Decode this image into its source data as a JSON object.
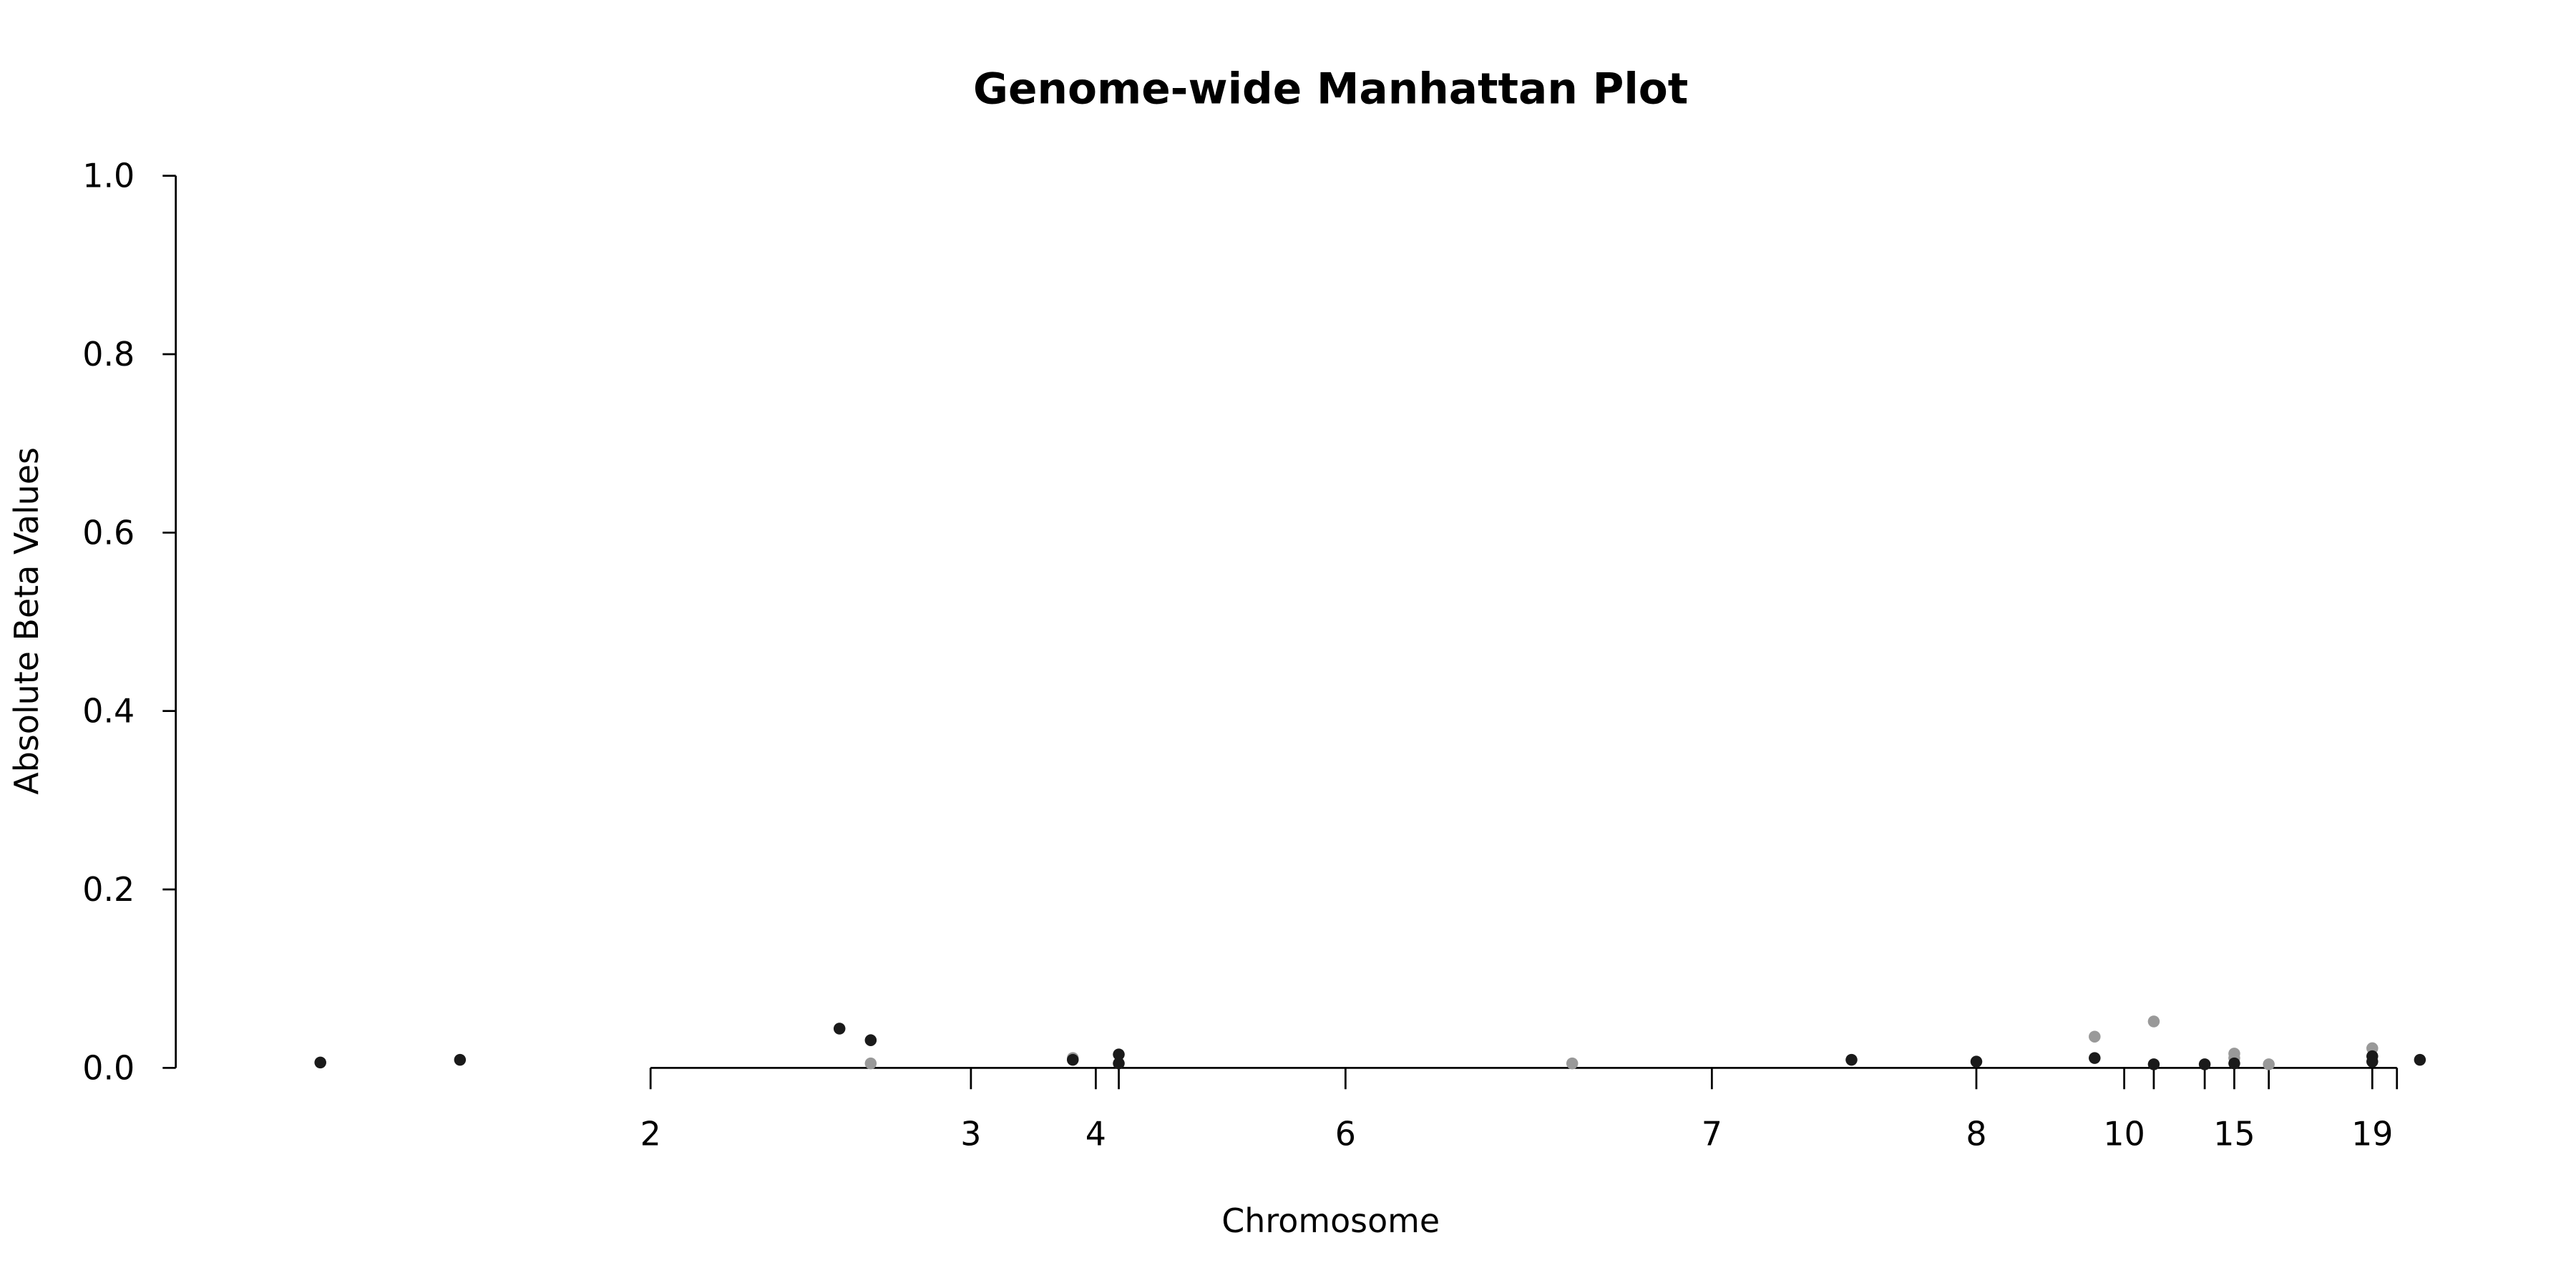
{
  "chart_data": {
    "type": "scatter",
    "title": "Genome-wide Manhattan Plot",
    "x_label": "Chromosome",
    "y_label": "Absolute Beta Values",
    "xlim": [
      0,
      1400
    ],
    "ylim": [
      0,
      1.0
    ],
    "xticks": [
      {
        "value": 289,
        "label": "2"
      },
      {
        "value": 484,
        "label": "3"
      },
      {
        "value": 560,
        "label": "4"
      },
      {
        "value": 574
      },
      {
        "value": 712,
        "label": "6"
      },
      {
        "value": 935,
        "label": "7"
      },
      {
        "value": 1096,
        "label": "8"
      },
      {
        "value": 1186,
        "label": "10"
      },
      {
        "value": 1204
      },
      {
        "value": 1235
      },
      {
        "value": 1253,
        "label": "15"
      },
      {
        "value": 1274
      },
      {
        "value": 1337,
        "label": "19"
      },
      {
        "value": 1352
      }
    ],
    "yticks": [
      {
        "value": 0,
        "label": "0.0"
      },
      {
        "value": 0.2,
        "label": "0.2"
      },
      {
        "value": 0.4,
        "label": "0.4"
      },
      {
        "value": 0.6,
        "label": "0.6"
      },
      {
        "value": 0.8,
        "label": "0.8"
      },
      {
        "value": 1.0,
        "label": "1.0"
      }
    ],
    "series": [
      {
        "color": "#999999",
        "x": [
          423,
          546,
          850,
          1168,
          1204,
          1253,
          1253,
          1274,
          1337
        ],
        "values": [
          0.005,
          0.011,
          0.005,
          0.035,
          0.052,
          0.016,
          0.011,
          0.004,
          0.022
        ]
      },
      {
        "color": "#1a1a1a",
        "x": [
          88,
          173,
          404,
          423,
          546,
          574,
          574,
          1020,
          1096,
          1168,
          1204,
          1235,
          1253,
          1337,
          1337,
          1366
        ],
        "values": [
          0.006,
          0.009,
          0.044,
          0.031,
          0.009,
          0.015,
          0.005,
          0.009,
          0.007,
          0.011,
          0.004,
          0.004,
          0.005,
          0.013,
          0.007,
          0.009
        ]
      }
    ]
  }
}
